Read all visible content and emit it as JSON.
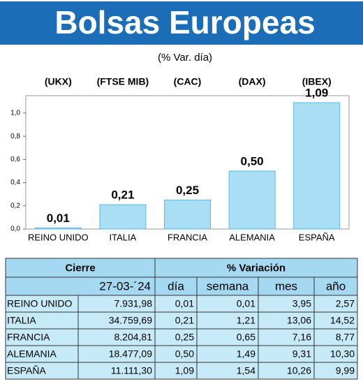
{
  "chart_data": {
    "type": "bar",
    "title": "Bolsas Europeas",
    "subtitle": "(% Var. día)",
    "category_codes": [
      "(UKX)",
      "(FTSE MIB)",
      "(CAC)",
      "(DAX)",
      "(IBEX)"
    ],
    "categories": [
      "REINO UNIDO",
      "ITALIA",
      "FRANCIA",
      "ALEMANIA",
      "ESPAÑA"
    ],
    "values": [
      0.01,
      0.21,
      0.25,
      0.5,
      1.09
    ],
    "value_labels": [
      "0,01",
      "0,21",
      "0,25",
      "0,50",
      "1,09"
    ],
    "color": "#a9def5",
    "ylim": [
      0,
      1.15
    ],
    "yticks": [
      {
        "value": 0,
        "label": "0,0"
      },
      {
        "value": 0.2,
        "label": "0,2"
      },
      {
        "value": 0.4,
        "label": "0,4"
      },
      {
        "value": 0.6,
        "label": "0,6"
      },
      {
        "value": 0.8,
        "label": "0,8"
      },
      {
        "value": 1.0,
        "label": "1,0"
      }
    ],
    "grid": false
  },
  "table": {
    "header": [
      "Cierre",
      "% Variación"
    ],
    "columns": [
      "27-03-´24",
      "día",
      "semana",
      "mes",
      "año"
    ],
    "rows": [
      [
        "REINO UNIDO",
        "7.931,98",
        "0,01",
        "0,01",
        "3,95",
        "2,57"
      ],
      [
        "ITALIA",
        "34.759,69",
        "0,21",
        "1,21",
        "13,06",
        "14,52"
      ],
      [
        "FRANCIA",
        "8.204,81",
        "0,25",
        "0,65",
        "7,16",
        "8,77"
      ],
      [
        "ALEMANIA",
        "18.477,09",
        "0,50",
        "1,49",
        "9,31",
        "10,30"
      ],
      [
        "ESPAÑA",
        "11.111,30",
        "1,09",
        "1,54",
        "10,26",
        "9,99"
      ]
    ]
  }
}
